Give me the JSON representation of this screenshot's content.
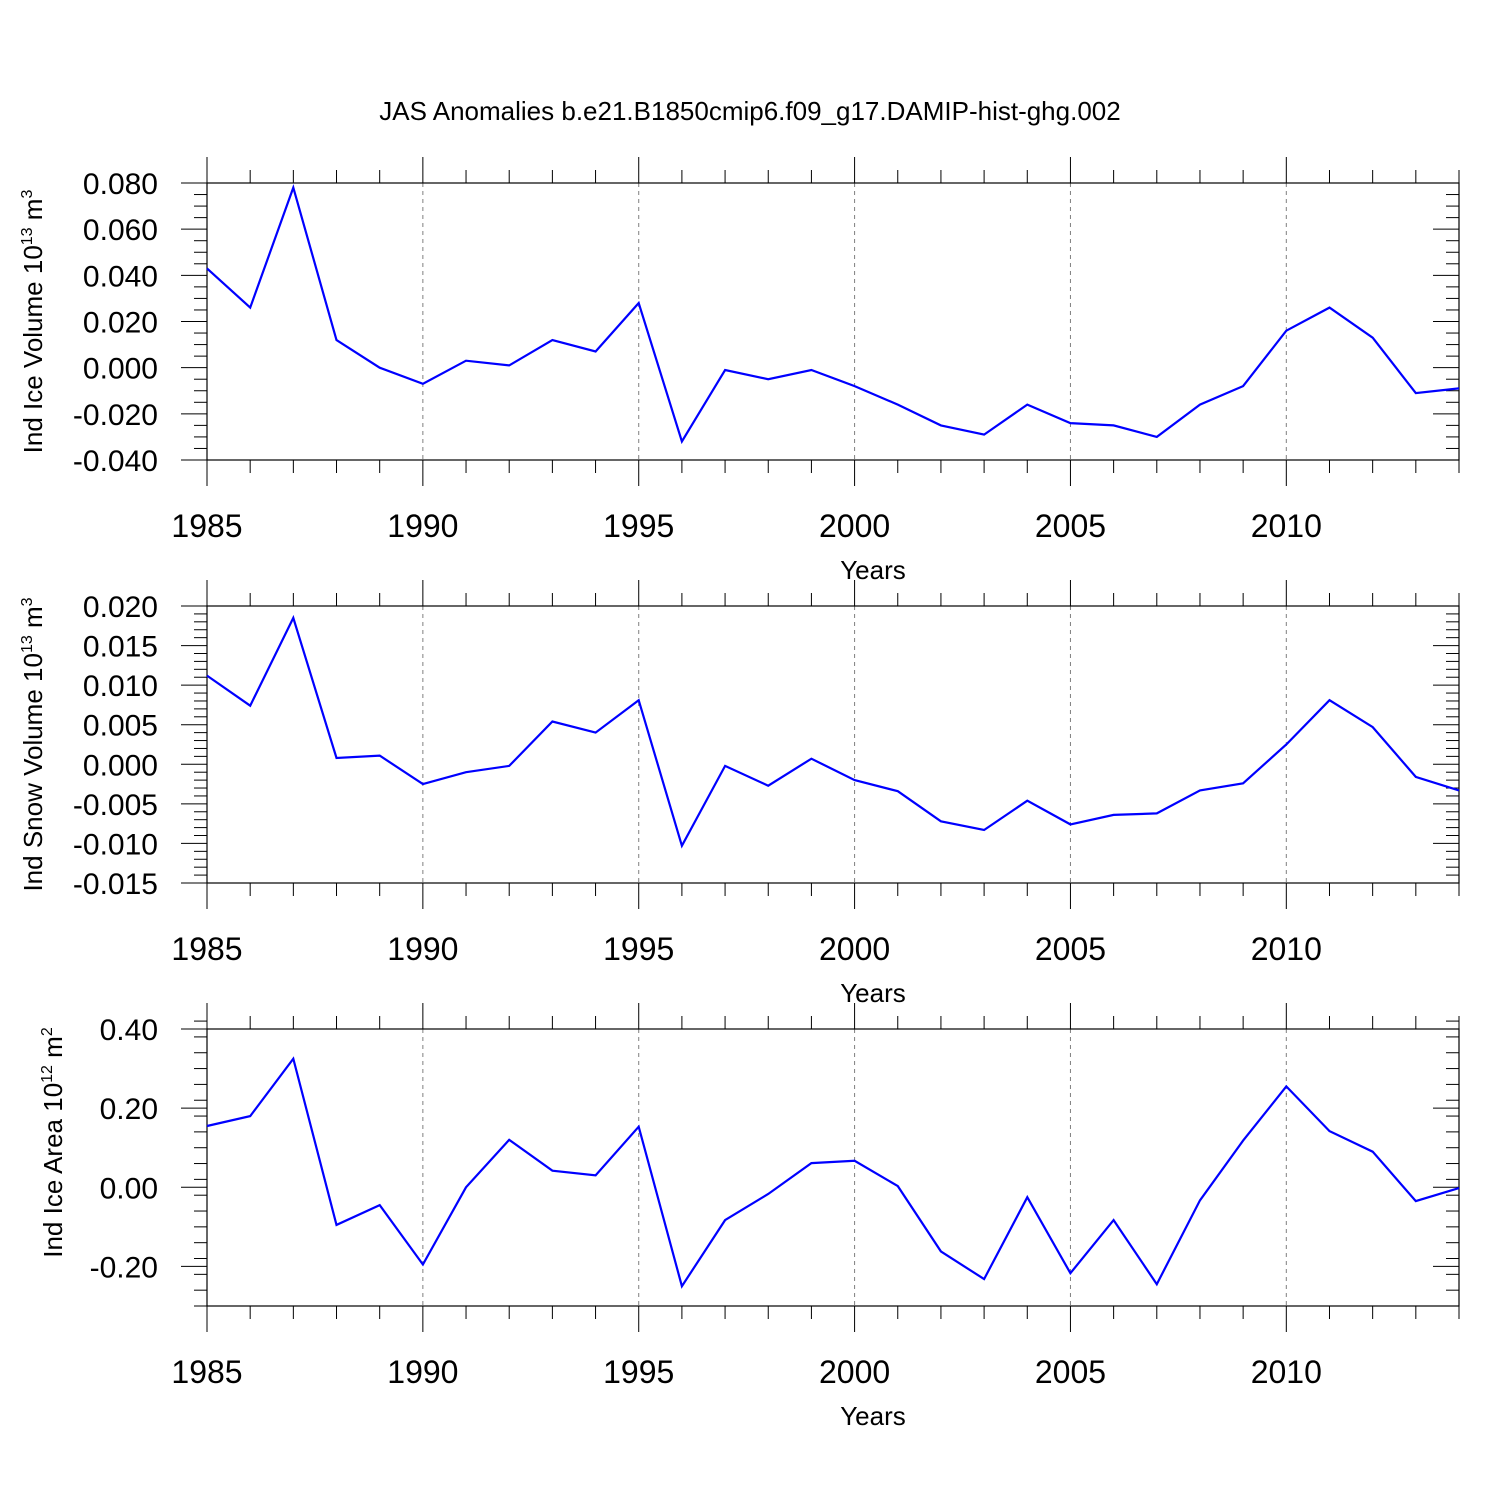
{
  "figure_title": "JAS Anomalies b.e21.B1850cmip6.f09_g17.DAMIP-hist-ghg.002",
  "colors": {
    "line": "#0000ff",
    "axis": "#000000",
    "grid": "#808080",
    "background": "#ffffff"
  },
  "chart_data": [
    {
      "type": "line",
      "title": "",
      "ylabel": {
        "text": "Ind Ice Volume 10",
        "exponent": "13",
        "unit": " m",
        "unit_exponent": "3"
      },
      "xlabel": "Years",
      "xlim": [
        1985,
        2014
      ],
      "ylim": [
        -0.04,
        0.08
      ],
      "xticks": [
        1985,
        1990,
        1995,
        2000,
        2005,
        2010
      ],
      "xtick_labels": [
        "1985",
        "1990",
        "1995",
        "2000",
        "2005",
        "2010"
      ],
      "yticks": [
        -0.04,
        -0.02,
        0.0,
        0.02,
        0.04,
        0.06,
        0.08
      ],
      "ytick_labels": [
        "-0.040",
        "-0.020",
        "0.000",
        "0.020",
        "0.040",
        "0.060",
        "0.080"
      ],
      "yminor_step": 0.005,
      "grid": "vertical dashed at major x ticks",
      "series": [
        {
          "name": "Ind Ice Volume",
          "x": [
            1985,
            1986,
            1987,
            1988,
            1989,
            1990,
            1991,
            1992,
            1993,
            1994,
            1995,
            1996,
            1997,
            1998,
            1999,
            2000,
            2001,
            2002,
            2003,
            2004,
            2005,
            2006,
            2007,
            2008,
            2009,
            2010,
            2011,
            2012,
            2013,
            2014
          ],
          "values": [
            0.043,
            0.026,
            0.078,
            0.012,
            0.0,
            -0.007,
            0.003,
            0.001,
            0.012,
            0.007,
            0.028,
            -0.032,
            -0.001,
            -0.005,
            -0.001,
            -0.008,
            -0.016,
            -0.025,
            -0.029,
            -0.016,
            -0.024,
            -0.025,
            -0.03,
            -0.016,
            -0.008,
            0.016,
            0.026,
            0.013,
            -0.011,
            -0.009
          ]
        }
      ]
    },
    {
      "type": "line",
      "title": "",
      "ylabel": {
        "text": "Ind Snow Volume 10",
        "exponent": "13",
        "unit": " m",
        "unit_exponent": "3"
      },
      "xlabel": "Years",
      "xlim": [
        1985,
        2014
      ],
      "ylim": [
        -0.015,
        0.02
      ],
      "xticks": [
        1985,
        1990,
        1995,
        2000,
        2005,
        2010
      ],
      "xtick_labels": [
        "1985",
        "1990",
        "1995",
        "2000",
        "2005",
        "2010"
      ],
      "yticks": [
        -0.015,
        -0.01,
        -0.005,
        0.0,
        0.005,
        0.01,
        0.015,
        0.02
      ],
      "ytick_labels": [
        "-0.015",
        "-0.010",
        "-0.005",
        "0.000",
        "0.005",
        "0.010",
        "0.015",
        "0.020"
      ],
      "yminor_step": 0.001,
      "grid": "vertical dashed at major x ticks",
      "series": [
        {
          "name": "Ind Snow Volume",
          "x": [
            1985,
            1986,
            1987,
            1988,
            1989,
            1990,
            1991,
            1992,
            1993,
            1994,
            1995,
            1996,
            1997,
            1998,
            1999,
            2000,
            2001,
            2002,
            2003,
            2004,
            2005,
            2006,
            2007,
            2008,
            2009,
            2010,
            2011,
            2012,
            2013,
            2014
          ],
          "values": [
            0.0112,
            0.0074,
            0.0185,
            0.0008,
            0.0011,
            -0.0025,
            -0.001,
            -0.0002,
            0.0054,
            0.004,
            0.0081,
            -0.0103,
            -0.0002,
            -0.0027,
            0.0007,
            -0.002,
            -0.0034,
            -0.0072,
            -0.0083,
            -0.0046,
            -0.0076,
            -0.0064,
            -0.0062,
            -0.0033,
            -0.0024,
            0.0025,
            0.0081,
            0.0047,
            -0.0016,
            -0.0033
          ]
        }
      ]
    },
    {
      "type": "line",
      "title": "",
      "ylabel": {
        "text": "Ind Ice Area 10",
        "exponent": "12",
        "unit": " m",
        "unit_exponent": "2"
      },
      "xlabel": "Years",
      "xlim": [
        1985,
        2014
      ],
      "ylim": [
        -0.3,
        0.4
      ],
      "xticks": [
        1985,
        1990,
        1995,
        2000,
        2005,
        2010
      ],
      "xtick_labels": [
        "1985",
        "1990",
        "1995",
        "2000",
        "2005",
        "2010"
      ],
      "yticks": [
        -0.2,
        0.0,
        0.2,
        0.4
      ],
      "ytick_labels": [
        "-0.20",
        "0.00",
        "0.20",
        "0.40"
      ],
      "yminor_step": 0.04,
      "grid": "vertical dashed at major x ticks",
      "series": [
        {
          "name": "Ind Ice Area",
          "x": [
            1985,
            1986,
            1987,
            1988,
            1989,
            1990,
            1991,
            1992,
            1993,
            1994,
            1995,
            1996,
            1997,
            1998,
            1999,
            2000,
            2001,
            2002,
            2003,
            2004,
            2005,
            2006,
            2007,
            2008,
            2009,
            2010,
            2011,
            2012,
            2013,
            2014
          ],
          "values": [
            0.155,
            0.18,
            0.325,
            -0.095,
            -0.045,
            -0.195,
            0.0,
            0.12,
            0.042,
            0.03,
            0.153,
            -0.25,
            -0.083,
            -0.017,
            0.061,
            0.067,
            0.003,
            -0.162,
            -0.232,
            -0.025,
            -0.217,
            -0.083,
            -0.245,
            -0.033,
            0.118,
            0.255,
            0.142,
            0.09,
            -0.035,
            -0.002
          ]
        }
      ]
    }
  ]
}
